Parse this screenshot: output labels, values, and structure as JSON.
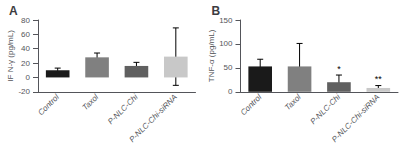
{
  "chart_data": [
    {
      "type": "bar",
      "title": "A",
      "ylabel": "IF N-γ (pg/mL)",
      "categories": [
        "Control",
        "Taxol",
        "P-NLC-Chi",
        "P-NLC-Chi-siRNA"
      ],
      "values": [
        10,
        28,
        16,
        29
      ],
      "errors": [
        3,
        6,
        5,
        40
      ],
      "colors": [
        "#1a1a1a",
        "#808080",
        "#606060",
        "#c8c8c8"
      ],
      "ylim": [
        -20,
        80
      ],
      "yticks": [
        -20,
        0,
        20,
        40,
        60,
        80
      ],
      "annotations": [
        null,
        null,
        null,
        null
      ],
      "grid": false
    },
    {
      "type": "bar",
      "title": "B",
      "ylabel": "TNF-α (pg/mL)",
      "categories": [
        "Control",
        "Taxol",
        "P-NLC-Chi",
        "P-NLC-Chi-siRNA"
      ],
      "values": [
        53,
        53,
        20,
        8
      ],
      "errors": [
        15,
        48,
        15,
        5
      ],
      "colors": [
        "#1a1a1a",
        "#808080",
        "#606060",
        "#c8c8c8"
      ],
      "ylim": [
        0,
        150
      ],
      "yticks": [
        0,
        50,
        100,
        150
      ],
      "annotations": [
        null,
        null,
        "*",
        "**"
      ],
      "grid": false
    }
  ]
}
